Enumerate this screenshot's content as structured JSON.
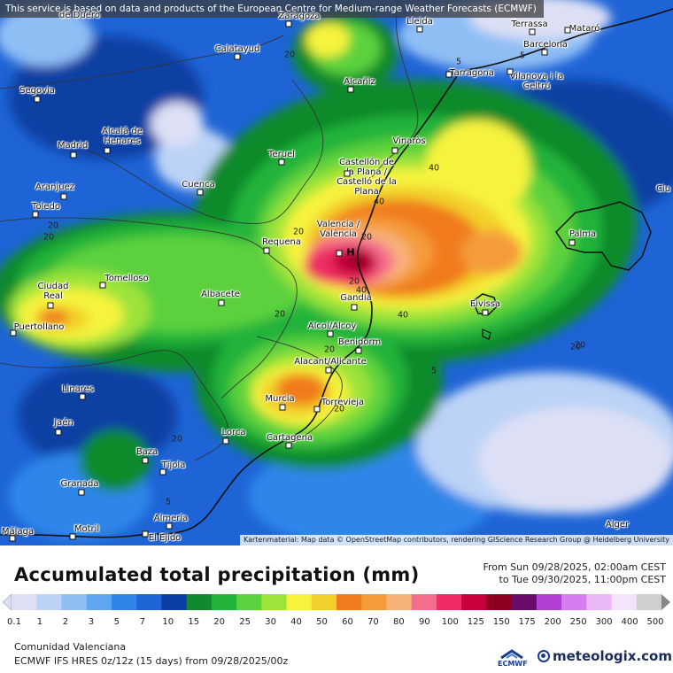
{
  "map": {
    "notice": "This service is based on data and products of the European Centre for Medium-range Weather Forecasts (ECMWF)",
    "attribution": "Kartenmaterial: Map data © OpenStreetMap contributors, rendering GIScience Research Group @ Heidelberg University",
    "marker_label": "H",
    "cities": [
      {
        "name": "Segovia",
        "dot": true
      },
      {
        "name": "Madrid",
        "dot": true
      },
      {
        "name": "Alcalá de Henares",
        "dot": true
      },
      {
        "name": "Aranjuez",
        "dot": true
      },
      {
        "name": "Toledo",
        "dot": true
      },
      {
        "name": "Cuenca",
        "dot": true
      },
      {
        "name": "Calatayud",
        "dot": true
      },
      {
        "name": "Zaragoza",
        "dot": true
      },
      {
        "name": "Lleida",
        "dot": true
      },
      {
        "name": "Alcañiz",
        "dot": true
      },
      {
        "name": "Teruel",
        "dot": true
      },
      {
        "name": "Terrassa",
        "dot": true
      },
      {
        "name": "Mataró",
        "dot": true
      },
      {
        "name": "Barcelona",
        "dot": true
      },
      {
        "name": "Tarragona",
        "dot": true
      },
      {
        "name": "Vilanova i la Geltrú",
        "dot": true
      },
      {
        "name": "Vinaròs",
        "dot": true
      },
      {
        "name": "Castellón de la Plana / Castelló de la Plana",
        "dot": true
      },
      {
        "name": "Valencia / València",
        "dot": true
      },
      {
        "name": "Requena",
        "dot": true
      },
      {
        "name": "Ciudad Real",
        "dot": true
      },
      {
        "name": "Tomelloso",
        "dot": true
      },
      {
        "name": "Albacete",
        "dot": true
      },
      {
        "name": "Puertollano",
        "dot": true
      },
      {
        "name": "Gandia",
        "dot": true
      },
      {
        "name": "Alcoi/Alcoy",
        "dot": true
      },
      {
        "name": "Benidorm",
        "dot": true
      },
      {
        "name": "Alacant/Alicante",
        "dot": true
      },
      {
        "name": "Murcia",
        "dot": true
      },
      {
        "name": "Torrevieja",
        "dot": true
      },
      {
        "name": "Cartagena",
        "dot": true
      },
      {
        "name": "Lorca",
        "dot": true
      },
      {
        "name": "Linares",
        "dot": true
      },
      {
        "name": "Jaén",
        "dot": true
      },
      {
        "name": "Baza",
        "dot": true
      },
      {
        "name": "Tíjola",
        "dot": true
      },
      {
        "name": "Granada",
        "dot": true
      },
      {
        "name": "Almería",
        "dot": true
      },
      {
        "name": "Motril",
        "dot": true
      },
      {
        "name": "El Ejido",
        "dot": true
      },
      {
        "name": "Málaga",
        "dot": true
      },
      {
        "name": "Palma",
        "dot": true
      },
      {
        "name": "Eivissa",
        "dot": true
      },
      {
        "name": "Ciu",
        "dot": false
      },
      {
        "name": "Alger",
        "dot": false
      },
      {
        "name": "de Duero",
        "dot": false
      }
    ],
    "contour_labels": [
      "20",
      "5",
      "20",
      "20",
      "40",
      "40",
      "20",
      "20",
      "40",
      "40",
      "20",
      "20",
      "20",
      "5",
      "5",
      "20",
      "20",
      "20",
      "20",
      "5"
    ]
  },
  "legend": {
    "title": "Accumulated total precipitation (mm)",
    "period_from": "From Sun 09/28/2025, 02:00am CEST",
    "period_to": "to Tue 09/30/2025, 11:00pm CEST",
    "ticks": [
      "0.1",
      "1",
      "2",
      "3",
      "5",
      "7",
      "10",
      "15",
      "20",
      "25",
      "30",
      "40",
      "50",
      "60",
      "70",
      "80",
      "90",
      "100",
      "125",
      "150",
      "175",
      "200",
      "250",
      "300",
      "400",
      "500"
    ],
    "colors": [
      "#dde0f5",
      "#bcd3f7",
      "#8fbef5",
      "#5fa5f0",
      "#2f86e8",
      "#1e64d6",
      "#0b3fa3",
      "#0f8a2c",
      "#24b33a",
      "#5bd13d",
      "#9ce33a",
      "#f6f33d",
      "#f2d02c",
      "#f07a1e",
      "#f59b3a",
      "#f7b27a",
      "#f46c8e",
      "#ef2d64",
      "#c8003c",
      "#8f0020",
      "#6a0a6a",
      "#b23fd6",
      "#d57df0",
      "#eab7f7",
      "#f4e3fa",
      "#cfcfcf"
    ]
  },
  "footer": {
    "region": "Comunidad Valenciana",
    "model": "ECMWF IFS HRES 0z/12z (15 days) from 09/28/2025/00z",
    "ecmwf_label": "ECMWF",
    "brand": "meteologix.com"
  }
}
